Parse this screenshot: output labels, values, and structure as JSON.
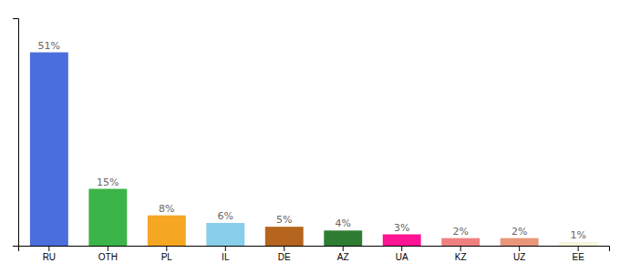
{
  "chart_data": {
    "type": "bar",
    "categories": [
      "RU",
      "OTH",
      "PL",
      "IL",
      "DE",
      "AZ",
      "UA",
      "KZ",
      "UZ",
      "EE"
    ],
    "values": [
      51,
      15,
      8,
      6,
      5,
      4,
      3,
      2,
      2,
      1
    ],
    "value_labels": [
      "51%",
      "15%",
      "8%",
      "6%",
      "5%",
      "4%",
      "3%",
      "2%",
      "2%",
      "1%"
    ],
    "colors": [
      "#4a6edb",
      "#3bb54a",
      "#f5a623",
      "#87ceeb",
      "#b5651d",
      "#2e7d32",
      "#ff1493",
      "#f08080",
      "#e9967a",
      "#f5f5dc"
    ],
    "ylim": [
      0,
      60
    ],
    "data_labels": true,
    "tick_labels": "x",
    "grid": false
  }
}
